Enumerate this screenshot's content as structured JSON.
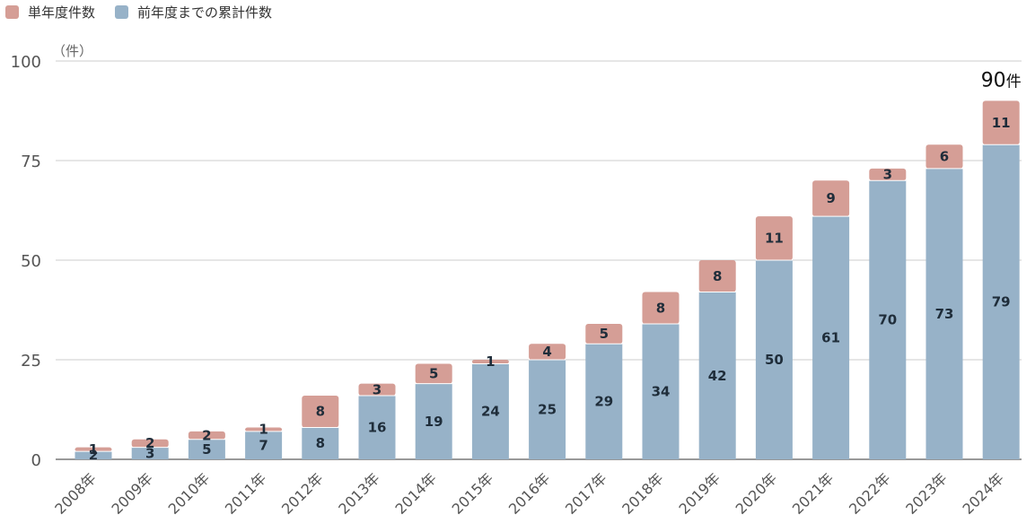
{
  "chart_data": {
    "type": "bar",
    "stacked": true,
    "categories": [
      "2008年",
      "2009年",
      "2010年",
      "2011年",
      "2012年",
      "2013年",
      "2014年",
      "2015年",
      "2016年",
      "2017年",
      "2018年",
      "2019年",
      "2020年",
      "2021年",
      "2022年",
      "2023年",
      "2024年"
    ],
    "series": [
      {
        "name": "前年度までの累計件数",
        "color": "#97b2c8",
        "values": [
          2,
          3,
          5,
          7,
          8,
          16,
          19,
          24,
          25,
          29,
          34,
          42,
          50,
          61,
          70,
          73,
          79
        ]
      },
      {
        "name": "単年度件数",
        "color": "#d59e96",
        "values": [
          1,
          2,
          2,
          1,
          8,
          3,
          5,
          1,
          4,
          5,
          8,
          8,
          11,
          9,
          3,
          6,
          11
        ]
      }
    ],
    "legend_order": [
      "単年度件数",
      "前年度までの累計件数"
    ],
    "legend_position": "top-left",
    "ylim": [
      0,
      100
    ],
    "yticks": [
      "0",
      "25",
      "50",
      "75",
      "100"
    ],
    "ylabel_unit": "（件）",
    "grid": true,
    "annotation": {
      "category": "2024年",
      "value": "90",
      "suffix": "件"
    }
  }
}
